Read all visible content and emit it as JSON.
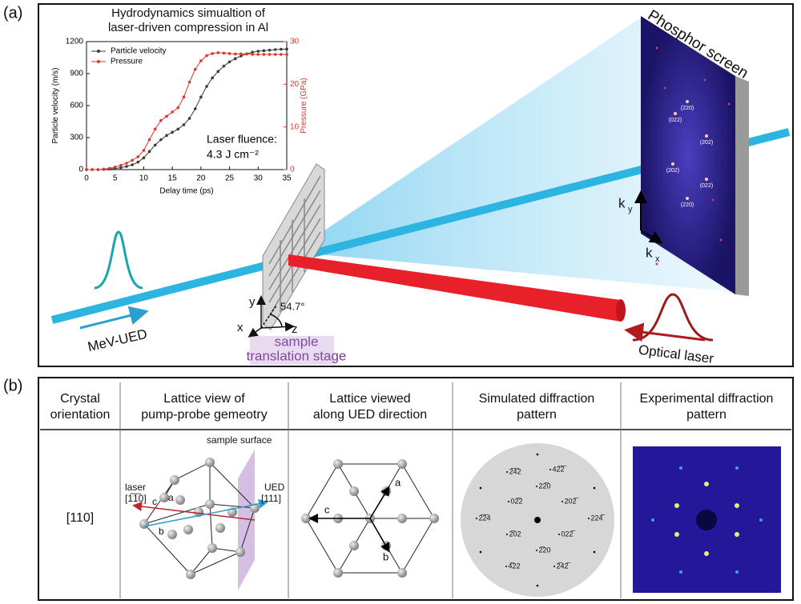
{
  "figure": {
    "panel_a_label": "(a)",
    "panel_b_label": "(b)"
  },
  "chart_data": {
    "type": "line",
    "title": "Hydrodynamics simualtion of\nlaser-driven compression in Al",
    "xlabel": "Delay time (ps)",
    "ylabel": "Particle velocity (m/s)",
    "y2label": "Pressure (GPa)",
    "x": [
      0,
      1,
      2,
      3,
      4,
      5,
      6,
      7,
      8,
      9,
      10,
      11,
      12,
      13,
      14,
      15,
      16,
      17,
      18,
      19,
      20,
      21,
      22,
      23,
      24,
      25,
      26,
      27,
      28,
      29,
      30,
      31,
      32,
      33,
      34,
      35
    ],
    "xlim": [
      0,
      35
    ],
    "xticks": [
      0,
      5,
      10,
      15,
      20,
      25,
      30,
      35
    ],
    "ylim": [
      0,
      1200
    ],
    "yticks": [
      0,
      300,
      600,
      900,
      1200
    ],
    "y2lim": [
      0,
      30
    ],
    "y2ticks": [
      0,
      10,
      20,
      30
    ],
    "legend": "upper left",
    "series": [
      {
        "name": "Particle velocity",
        "color": "#3a3a3a",
        "values": [
          0,
          0,
          0,
          2,
          5,
          10,
          18,
          30,
          45,
          70,
          110,
          170,
          230,
          280,
          320,
          350,
          380,
          420,
          480,
          570,
          680,
          780,
          860,
          920,
          970,
          1010,
          1040,
          1065,
          1085,
          1100,
          1110,
          1115,
          1120,
          1125,
          1128,
          1130
        ]
      },
      {
        "name": "Pressure",
        "color": "#d9372f",
        "axis": "y2",
        "values": [
          0,
          0,
          0,
          0.1,
          0.3,
          0.6,
          1,
          1.5,
          2.2,
          3,
          4.5,
          7,
          9.5,
          11.5,
          12.5,
          13.5,
          14.5,
          17,
          20.5,
          23.5,
          25.5,
          26.7,
          27.2,
          27.4,
          27.3,
          27.2,
          27.1,
          27.1,
          27.1,
          27,
          27,
          27,
          27,
          27,
          27,
          27
        ]
      }
    ],
    "annotation": [
      "Laser fluence:",
      "4.3 J cm⁻²"
    ]
  },
  "panel_a": {
    "screen_title": "Phosphor screen",
    "screen_spots": [
      "(220)",
      "(022)",
      "(202)",
      "(202)",
      "(022)",
      "(220)"
    ],
    "ky": [
      "k",
      "y"
    ],
    "kx": [
      "k",
      "x"
    ],
    "beam_label": "MeV-UED",
    "stage_label": [
      "sample",
      "translation stage"
    ],
    "laser_label": "Optical laser",
    "axes": {
      "y": "y",
      "x": "x",
      "z": "z",
      "angle": "54.7°"
    }
  },
  "panel_b": {
    "headers": [
      "Crystal\norientation",
      "Lattice view of\npump-probe gemeotry",
      "Lattice viewed\nalong UED direction",
      "Simulated diffraction\npattern",
      "Experimental diffraction\npattern"
    ],
    "row": "[110]",
    "lattice_view": {
      "surface": "sample surface",
      "laser": "laser",
      "laser_dir": "[1̅1̅0]",
      "ued": "UED",
      "ued_dir": "[111]",
      "a": "a",
      "b": "b",
      "c": "c"
    },
    "along_ued": {
      "a": "a",
      "c": "c",
      "b": "b"
    },
    "simulated_labels": [
      "2̅4̅2",
      "42̅2̅",
      "22̅0",
      "02̅2",
      "202̅",
      "2̅2̅4",
      "224̅",
      "2̅02",
      "022̅",
      "2̅20",
      "4̅22",
      "2̅42̅"
    ]
  }
}
